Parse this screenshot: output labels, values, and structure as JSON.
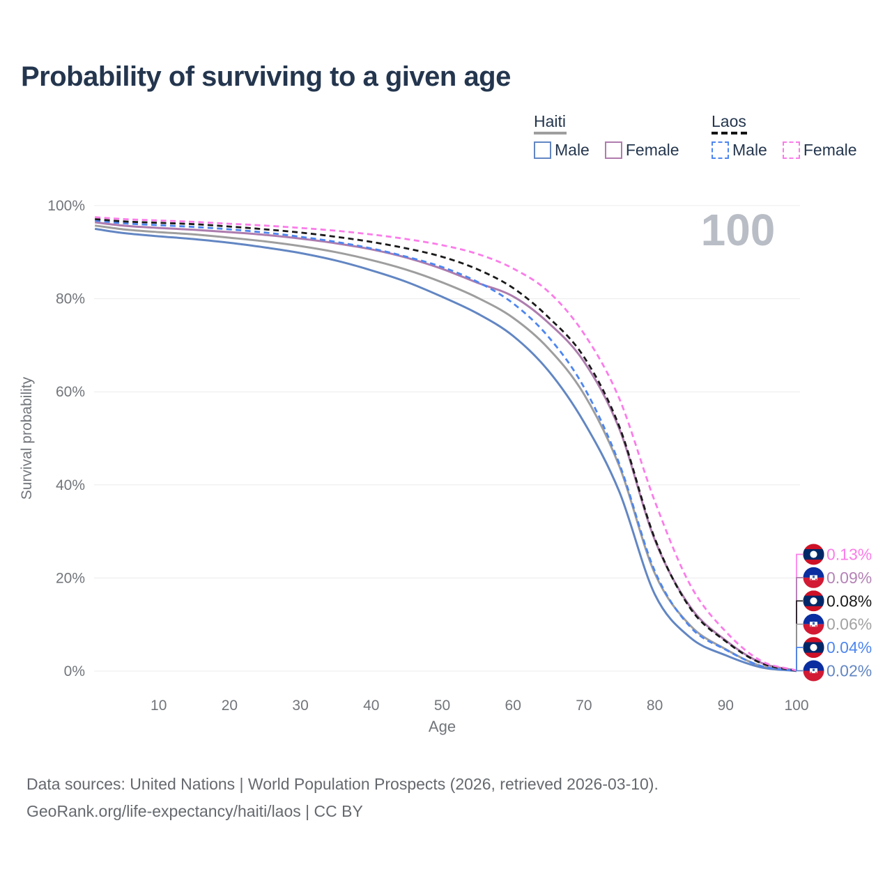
{
  "title": "Probability of surviving to a given age",
  "legend": {
    "groups": [
      {
        "name": "Haiti",
        "line_style": "solid",
        "underline_color": "#9e9e9e",
        "items": [
          {
            "label": "Male",
            "color": "#6286c3"
          },
          {
            "label": "Female",
            "color": "#b07bad"
          }
        ]
      },
      {
        "name": "Laos",
        "line_style": "dashed",
        "underline_color": "#141414",
        "items": [
          {
            "label": "Male",
            "color": "#4d86f0"
          },
          {
            "label": "Female",
            "color": "#fb7ce9"
          }
        ]
      }
    ]
  },
  "chart_data": {
    "type": "line",
    "title": "Probability of surviving to a given age",
    "xlabel": "Age",
    "ylabel": "Survival probability",
    "xlim": [
      0,
      100
    ],
    "ylim": [
      0,
      100
    ],
    "x_ticks": [
      10,
      20,
      30,
      40,
      50,
      60,
      70,
      80,
      90,
      100
    ],
    "y_ticks": [
      0,
      20,
      40,
      60,
      80,
      100
    ],
    "y_tick_suffix": "%",
    "grid": "horizontal",
    "age_watermark": "100",
    "ages": [
      1,
      5,
      10,
      15,
      20,
      25,
      30,
      35,
      40,
      45,
      50,
      55,
      60,
      65,
      70,
      75,
      80,
      85,
      90,
      95,
      100
    ],
    "series": [
      {
        "id": "haiti-female",
        "country": "Haiti",
        "sex": "Female",
        "color": "#ad7cae",
        "dash": "solid",
        "flag": "haiti",
        "end_label": "0.09%",
        "end_label_color": "#b482b6",
        "values": [
          96.4,
          95.7,
          95.2,
          94.8,
          94.3,
          93.7,
          92.9,
          91.9,
          90.6,
          88.8,
          86.4,
          83.4,
          80.5,
          74.8,
          66.5,
          52.0,
          28.2,
          13.8,
          6.6,
          1.8,
          0.09
        ]
      },
      {
        "id": "haiti-all",
        "country": "Haiti",
        "sex": "Both",
        "color": "#9e9e9e",
        "dash": "solid",
        "flag": "haiti",
        "end_label": "0.06%",
        "end_label_color": "#a2a2a2",
        "values": [
          95.7,
          94.9,
          94.3,
          93.8,
          93.1,
          92.3,
          91.3,
          90.0,
          88.3,
          86.2,
          83.5,
          80.2,
          75.9,
          69.3,
          59.5,
          44.0,
          21.0,
          9.8,
          4.7,
          1.1,
          0.06
        ]
      },
      {
        "id": "haiti-male",
        "country": "Haiti",
        "sex": "Male",
        "color": "#6286c3",
        "dash": "solid",
        "flag": "haiti",
        "end_label": "0.02%",
        "end_label_color": "#6286c3",
        "values": [
          95.0,
          94.1,
          93.4,
          92.8,
          92.0,
          91.0,
          89.8,
          88.2,
          86.1,
          83.6,
          80.4,
          76.8,
          72.0,
          64.5,
          53.5,
          38.5,
          16.5,
          7.2,
          3.4,
          0.8,
          0.02
        ]
      },
      {
        "id": "laos-male",
        "country": "Laos",
        "sex": "Male",
        "color": "#4d86f0",
        "dash": "dashed",
        "flag": "laos",
        "end_label": "0.04%",
        "end_label_color": "#4d86f0",
        "values": [
          96.8,
          96.2,
          95.8,
          95.4,
          94.9,
          94.2,
          93.3,
          92.2,
          90.8,
          89.0,
          86.8,
          83.6,
          79.0,
          71.8,
          61.0,
          44.5,
          21.5,
          9.5,
          4.6,
          1.1,
          0.04
        ]
      },
      {
        "id": "laos-all",
        "country": "Laos",
        "sex": "Both",
        "color": "#1a1a1a",
        "dash": "dashed",
        "flag": "laos",
        "end_label": "0.08%",
        "end_label_color": "#1a1a1a",
        "values": [
          97.1,
          96.6,
          96.3,
          96.0,
          95.5,
          94.9,
          94.2,
          93.3,
          92.2,
          90.8,
          89.0,
          86.3,
          82.3,
          76.0,
          67.5,
          52.5,
          28.5,
          13.5,
          6.4,
          1.7,
          0.08
        ]
      },
      {
        "id": "laos-female",
        "country": "Laos",
        "sex": "Female",
        "color": "#fb7ce9",
        "dash": "dashed",
        "flag": "laos",
        "end_label": "0.13%",
        "end_label_color": "#fb7ce9",
        "values": [
          97.5,
          97.1,
          96.8,
          96.5,
          96.1,
          95.7,
          95.2,
          94.6,
          93.8,
          92.8,
          91.5,
          89.6,
          86.5,
          81.5,
          72.5,
          58.5,
          36.5,
          18.5,
          8.5,
          2.2,
          0.13
        ]
      }
    ]
  },
  "footer": {
    "line1": "Data sources: United Nations | World Population Prospects (2026, retrieved 2026-03-10).",
    "line2": "GeoRank.org/life-expectancy/haiti/laos | CC BY"
  },
  "colors": {
    "title": "#24364e",
    "axis_text": "#71757a",
    "gridline": "#ececec",
    "watermark": "#b9bdc5",
    "footer_text": "#65696e",
    "haiti_flag_blue": "#0a2ea0",
    "haiti_flag_red": "#d21a34",
    "laos_flag_blue": "#002868",
    "laos_flag_red": "#ce1126"
  }
}
